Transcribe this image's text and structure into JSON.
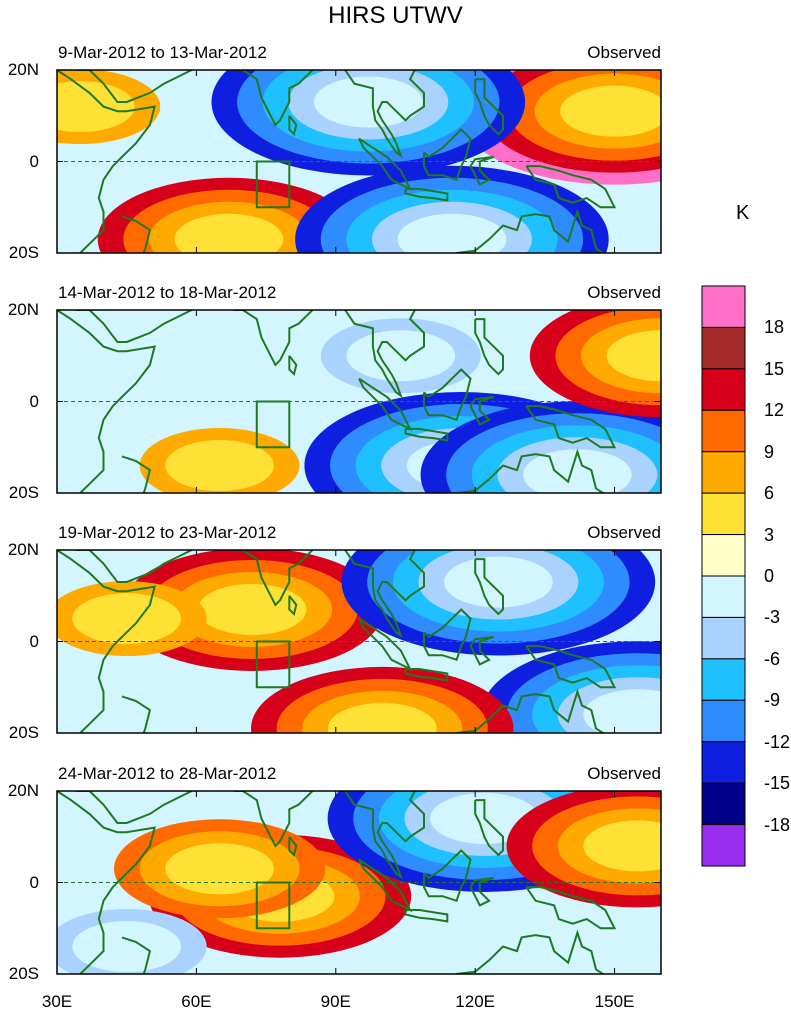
{
  "chart_data": {
    "type": "heatmap",
    "title": "HIRS UTWV",
    "x_ticks": [
      "30E",
      "60E",
      "90E",
      "120E",
      "150E"
    ],
    "x_values": [
      30,
      60,
      90,
      120,
      150
    ],
    "xlim": [
      30,
      160
    ],
    "y_ticks": [
      "20N",
      "0",
      "20S"
    ],
    "y_values": [
      20,
      0,
      -20
    ],
    "ylim": [
      -20,
      20
    ],
    "colorbar": {
      "unit": "K",
      "labels": [
        "18",
        "15",
        "12",
        "9",
        "6",
        "3",
        "0",
        "-3",
        "-6",
        "-9",
        "-12",
        "-15",
        "-18"
      ],
      "colors": [
        "#ff6ec7",
        "#a52a2a",
        "#d7001a",
        "#ff6a00",
        "#ffaa00",
        "#ffe035",
        "#ffffc8",
        "#d2f5ff",
        "#aad2ff",
        "#1ec0ff",
        "#2e8cff",
        "#0f1fe0",
        "#00008b",
        "#9a2ef0"
      ]
    },
    "panels": [
      {
        "date_range": "9-Mar-2012 to 13-Mar-2012",
        "label": "Observed",
        "features": [
          {
            "lon": 150,
            "lat": 11,
            "value": 18
          },
          {
            "lon": 67,
            "lat": -17,
            "value": 12
          },
          {
            "lon": 97,
            "lat": 13,
            "value": -15
          },
          {
            "lon": 115,
            "lat": -17,
            "value": -15
          },
          {
            "lon": 35,
            "lat": 12,
            "value": 6
          }
        ]
      },
      {
        "date_range": "14-Mar-2012 to 18-Mar-2012",
        "label": "Observed",
        "features": [
          {
            "lon": 117,
            "lat": -14,
            "value": -15
          },
          {
            "lon": 142,
            "lat": -16,
            "value": -15
          },
          {
            "lon": 160,
            "lat": 10,
            "value": 12
          },
          {
            "lon": 65,
            "lat": -14,
            "value": 6
          },
          {
            "lon": 104,
            "lat": 10,
            "value": -6
          }
        ]
      },
      {
        "date_range": "19-Mar-2012 to 23-Mar-2012",
        "label": "Observed",
        "features": [
          {
            "lon": 72,
            "lat": 7,
            "value": 12
          },
          {
            "lon": 125,
            "lat": 13,
            "value": -15
          },
          {
            "lon": 155,
            "lat": -16,
            "value": -15
          },
          {
            "lon": 100,
            "lat": -19,
            "value": 12
          },
          {
            "lon": 45,
            "lat": 5,
            "value": 6
          }
        ]
      },
      {
        "date_range": "24-Mar-2012 to 28-Mar-2012",
        "label": "Observed",
        "features": [
          {
            "lon": 78,
            "lat": -3,
            "value": 12
          },
          {
            "lon": 122,
            "lat": 14,
            "value": -15
          },
          {
            "lon": 155,
            "lat": 8,
            "value": 12
          },
          {
            "lon": 65,
            "lat": 3,
            "value": 9
          },
          {
            "lon": 45,
            "lat": -14,
            "value": -6
          }
        ]
      }
    ]
  }
}
